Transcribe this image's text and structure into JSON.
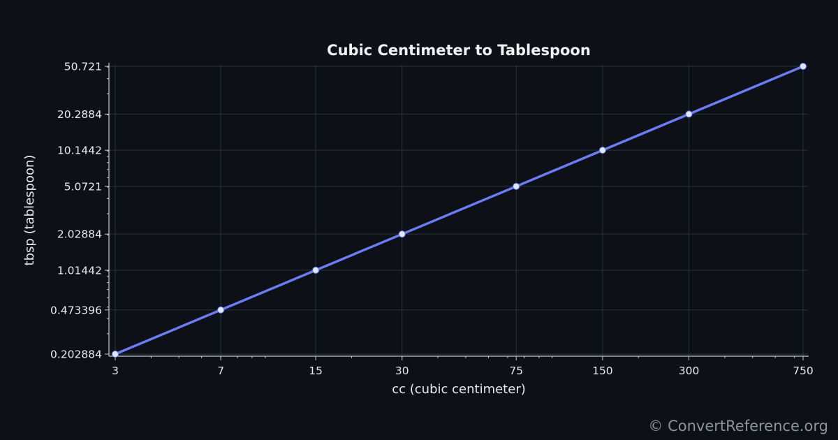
{
  "chart_data": {
    "type": "line",
    "title": "Cubic Centimeter to Tablespoon",
    "xlabel": "cc (cubic centimeter)",
    "ylabel": "tbsp (tablespoon)",
    "x_scale": "log",
    "y_scale": "log",
    "xlim": [
      3,
      750
    ],
    "ylim": [
      0.202884,
      50.721
    ],
    "grid": true,
    "x_ticks": [
      "3",
      "7",
      "15",
      "30",
      "75",
      "150",
      "300",
      "750"
    ],
    "y_ticks": [
      "0.202884",
      "0.473396",
      "1.01442",
      "2.02884",
      "5.0721",
      "10.1442",
      "20.2884",
      "50.721"
    ],
    "series": [
      {
        "x": [
          3,
          7,
          15,
          30,
          75,
          150,
          300,
          750
        ],
        "y": [
          0.202884,
          0.473396,
          1.01442,
          2.02884,
          5.0721,
          10.1442,
          20.2884,
          50.721
        ]
      }
    ],
    "colors": {
      "background": "#0d1117",
      "line": "#6b7cf6",
      "marker": "#dfe8fb",
      "grid": "#2a323c",
      "axis": "#c3c9d1"
    }
  },
  "watermark": "© ConvertReference.org"
}
